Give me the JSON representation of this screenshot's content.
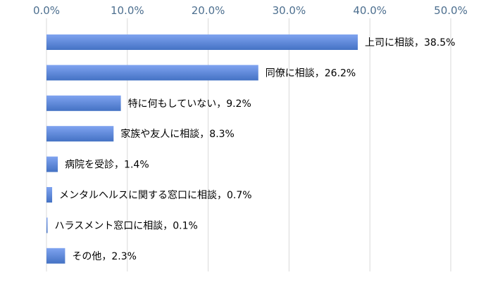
{
  "chart_data": {
    "type": "bar",
    "orientation": "horizontal",
    "categories": [
      "上司に相談",
      "同僚に相談",
      "特に何もしていない",
      "家族や友人に相談",
      "病院を受診",
      "メンタルヘルスに関する窓口に相談",
      "ハラスメント窓口に相談",
      "その他"
    ],
    "values": [
      38.5,
      26.2,
      9.2,
      8.3,
      1.4,
      0.7,
      0.1,
      2.3
    ],
    "data_labels": [
      "上司に相談，38.5%",
      "同僚に相談，26.2%",
      "特に何もしていない，9.2%",
      "家族や友人に相談，8.3%",
      "病院を受診，1.4%",
      "メンタルヘルスに関する窓口に相談，0.7%",
      "ハラスメント窓口に相談，0.1%",
      "その他，2.3%"
    ],
    "x_ticks": [
      0,
      10,
      20,
      30,
      40,
      50
    ],
    "x_tick_labels": [
      "0.0%",
      "10.0%",
      "20.0%",
      "30.0%",
      "40.0%",
      "50.0%"
    ],
    "xlim": [
      0,
      50
    ],
    "x_axis_position": "top",
    "grid": "vertical",
    "legend": "none",
    "title": "",
    "xlabel": "",
    "ylabel": "",
    "colors": {
      "bar_light": "#7fa3f0",
      "bar_dark": "#4472c4",
      "grid": "#d9d9d9",
      "tick_text": "#4d6f8f"
    }
  }
}
